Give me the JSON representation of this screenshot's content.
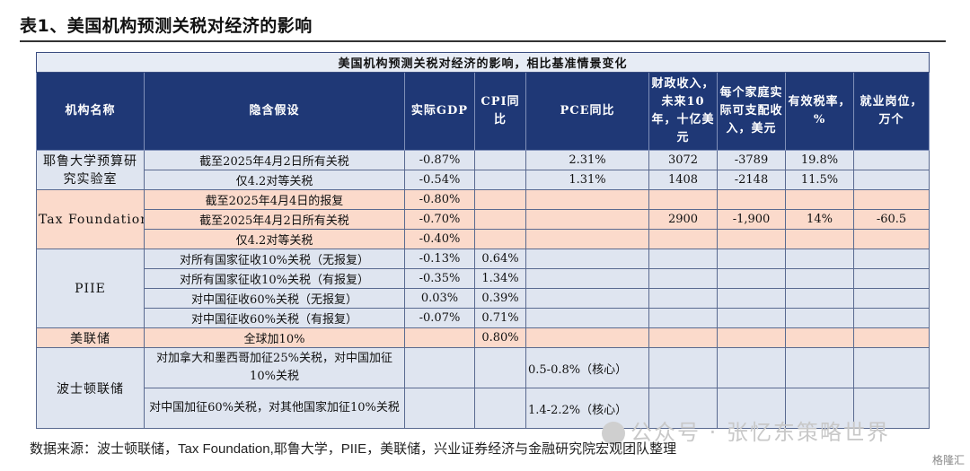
{
  "page_title": "表1、美国机构预测关税对经济的影响",
  "table": {
    "caption": "美国机构预测关税对经济的影响，相比基准情景变化",
    "headers": [
      "机构名称",
      "隐含假设",
      "实际GDP",
      "CPI同比",
      "PCE同比",
      "财政收入，未来10年，十亿美元",
      "每个家庭实际可支配收入，美元",
      "有效税率，%",
      "就业岗位，万个"
    ],
    "groups": {
      "yale": "耶鲁大学预算研究实验室",
      "tax": "Tax Foundation",
      "piie": "PIIE",
      "fed": "美联储",
      "boston": "波士顿联储"
    },
    "rows": [
      [
        "截至2025年4月2日所有关税",
        "-0.87%",
        "",
        "2.31%",
        "3072",
        "-3789",
        "19.8%",
        ""
      ],
      [
        "仅4.2对等关税",
        "-0.54%",
        "",
        "1.31%",
        "1408",
        "-2148",
        "11.5%",
        ""
      ],
      [
        "截至2025年4月4日的报复",
        "-0.80%",
        "",
        "",
        "",
        "",
        "",
        ""
      ],
      [
        "截至2025年4月2日所有关税",
        "-0.70%",
        "",
        "",
        "2900",
        "-1,900",
        "14%",
        "-60.5"
      ],
      [
        "仅4.2对等关税",
        "-0.40%",
        "",
        "",
        "",
        "",
        "",
        ""
      ],
      [
        "对所有国家征收10%关税（无报复）",
        "-0.13%",
        "0.64%",
        "",
        "",
        "",
        "",
        ""
      ],
      [
        "对所有国家征收10%关税（有报复）",
        "-0.35%",
        "1.34%",
        "",
        "",
        "",
        "",
        ""
      ],
      [
        "对中国征收60%关税（无报复）",
        "0.03%",
        "0.39%",
        "",
        "",
        "",
        "",
        ""
      ],
      [
        "对中国征收60%关税（有报复）",
        "-0.07%",
        "0.71%",
        "",
        "",
        "",
        "",
        ""
      ],
      [
        "全球加10%",
        "",
        "0.80%",
        "",
        "",
        "",
        "",
        ""
      ],
      [
        "对加拿大和墨西哥加征25%关税，对中国加征10%关税",
        "",
        "",
        "0.5-0.8%（核心）",
        "",
        "",
        "",
        ""
      ],
      [
        "对中国加征60%关税，对其他国家加征10%关税",
        "",
        "",
        "1.4-2.2%（核心）",
        "",
        "",
        "",
        ""
      ]
    ]
  },
  "footer": "数据来源：波士顿联储，Tax Foundation,耶鲁大学，PIIE，美联储，兴业证券经济与金融研究院宏观团队整理",
  "watermark": "公众号 · 张忆东策略世界",
  "logo": "格隆汇"
}
